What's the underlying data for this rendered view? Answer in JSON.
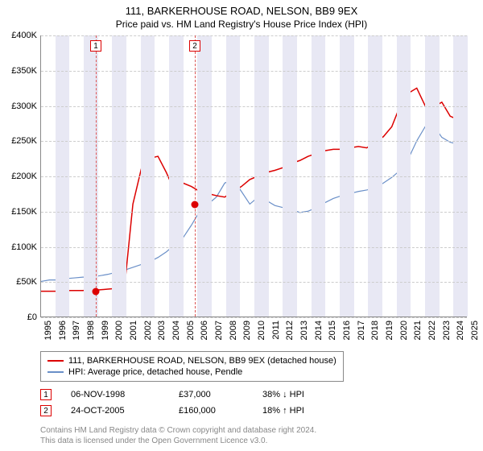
{
  "title": "111, BARKERHOUSE ROAD, NELSON, BB9 9EX",
  "subtitle": "Price paid vs. HM Land Registry's House Price Index (HPI)",
  "chart": {
    "type": "line",
    "x_start_year": 1995,
    "x_end_year": 2025,
    "xticks": [
      "1995",
      "1996",
      "1997",
      "1998",
      "1999",
      "2000",
      "2001",
      "2002",
      "2003",
      "2004",
      "2005",
      "2006",
      "2007",
      "2008",
      "2009",
      "2010",
      "2011",
      "2012",
      "2013",
      "2014",
      "2015",
      "2016",
      "2017",
      "2018",
      "2019",
      "2020",
      "2021",
      "2022",
      "2023",
      "2024",
      "2025"
    ],
    "ylim": [
      0,
      400000
    ],
    "yticks": [
      0,
      50000,
      100000,
      150000,
      200000,
      250000,
      300000,
      350000,
      400000
    ],
    "ytick_labels": [
      "£0",
      "£50K",
      "£100K",
      "£150K",
      "£200K",
      "£250K",
      "£300K",
      "£350K",
      "£400K"
    ],
    "grid_color": "#cccccc",
    "background_color": "#ffffff",
    "band_color": "#e8e8f4",
    "series": [
      {
        "name": "111, BARKERHOUSE ROAD, NELSON, BB9 9EX (detached house)",
        "color": "#dc0000",
        "width": 1.5,
        "y": [
          36,
          36,
          36,
          37,
          37,
          37,
          38,
          38,
          39,
          40,
          42,
          160,
          210,
          225,
          228,
          205,
          178,
          190,
          185,
          178,
          175,
          172,
          170,
          178,
          185,
          195,
          200,
          205,
          208,
          212,
          218,
          222,
          228,
          232,
          236,
          238,
          238,
          240,
          242,
          240,
          248,
          256,
          270,
          300,
          318,
          325,
          300,
          298,
          305,
          285,
          280,
          290
        ]
      },
      {
        "name": "HPI: Average price, detached house, Pendle",
        "color": "#6a8fc8",
        "width": 1.2,
        "y": [
          50,
          52,
          52,
          54,
          55,
          56,
          56,
          58,
          60,
          63,
          66,
          70,
          74,
          78,
          84,
          92,
          102,
          112,
          130,
          150,
          160,
          170,
          190,
          195,
          178,
          160,
          170,
          165,
          158,
          155,
          152,
          148,
          150,
          155,
          162,
          168,
          172,
          175,
          178,
          180,
          183,
          190,
          198,
          208,
          225,
          250,
          270,
          272,
          255,
          248,
          245,
          250
        ]
      }
    ],
    "sale_points": [
      {
        "label": "1",
        "year": 1998.85,
        "value": 37000
      },
      {
        "label": "2",
        "year": 2005.81,
        "value": 160000
      }
    ]
  },
  "legend_items": [
    {
      "color": "#dc0000",
      "label": "111, BARKERHOUSE ROAD, NELSON, BB9 9EX (detached house)"
    },
    {
      "color": "#6a8fc8",
      "label": "HPI: Average price, detached house, Pendle"
    }
  ],
  "sales": [
    {
      "num": "1",
      "date": "06-NOV-1998",
      "price": "£37,000",
      "delta": "38% ↓ HPI"
    },
    {
      "num": "2",
      "date": "24-OCT-2005",
      "price": "£160,000",
      "delta": "18% ↑ HPI"
    }
  ],
  "footer": {
    "line1": "Contains HM Land Registry data © Crown copyright and database right 2024.",
    "line2": "This data is licensed under the Open Government Licence v3.0."
  }
}
